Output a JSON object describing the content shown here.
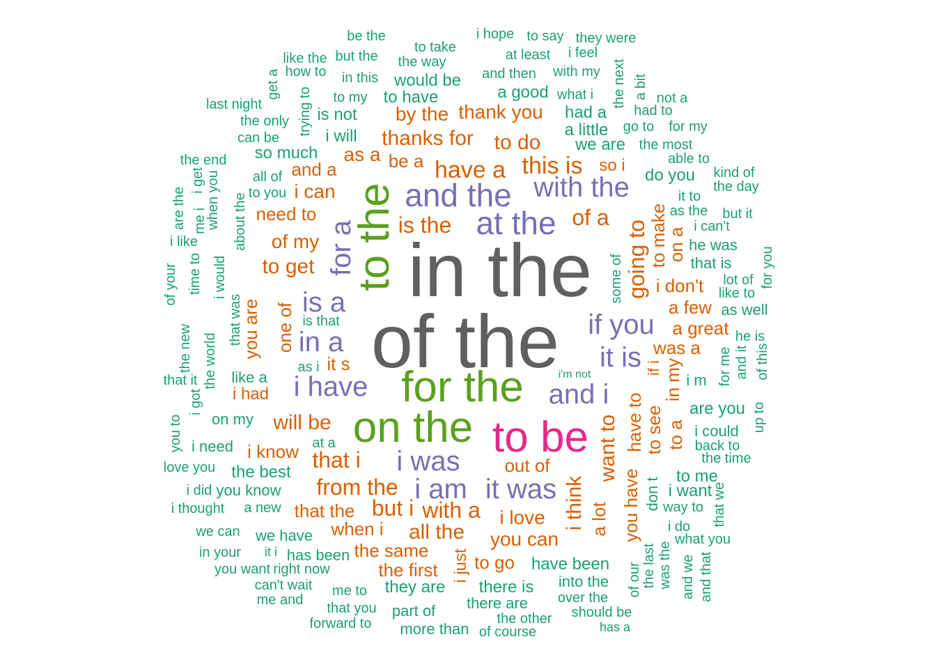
{
  "colors": {
    "tier1": "#5f6060",
    "tier2": "#5aa01e",
    "tier3": "#e7298a",
    "tier4": "#7570b3",
    "tier5": "#d95f02",
    "tier6": "#1b9e77"
  },
  "words": [
    {
      "text": "in the",
      "tier": "tier1"
    },
    {
      "text": "of the",
      "tier": "tier1"
    },
    {
      "text": "for the",
      "tier": "tier2"
    },
    {
      "text": "on the",
      "tier": "tier2"
    },
    {
      "text": "to the",
      "tier": "tier2"
    },
    {
      "text": "to be",
      "tier": "tier3"
    },
    {
      "text": "and the",
      "tier": "tier4"
    },
    {
      "text": "at the",
      "tier": "tier4"
    },
    {
      "text": "with the",
      "tier": "tier4"
    },
    {
      "text": "i have",
      "tier": "tier4"
    },
    {
      "text": "i was",
      "tier": "tier4"
    },
    {
      "text": "i am",
      "tier": "tier4"
    },
    {
      "text": "it was",
      "tier": "tier4"
    },
    {
      "text": "is a",
      "tier": "tier4"
    },
    {
      "text": "in a",
      "tier": "tier4"
    },
    {
      "text": "if you",
      "tier": "tier4"
    },
    {
      "text": "it is",
      "tier": "tier4"
    },
    {
      "text": "and i",
      "tier": "tier4"
    },
    {
      "text": "for a",
      "tier": "tier4"
    },
    {
      "text": "have a",
      "tier": "tier5"
    },
    {
      "text": "this is",
      "tier": "tier5"
    },
    {
      "text": "is the",
      "tier": "tier5"
    },
    {
      "text": "of a",
      "tier": "tier5"
    },
    {
      "text": "going to",
      "tier": "tier5"
    },
    {
      "text": "to get",
      "tier": "tier5"
    },
    {
      "text": "of my",
      "tier": "tier5"
    },
    {
      "text": "need to",
      "tier": "tier5"
    },
    {
      "text": "i can",
      "tier": "tier5"
    },
    {
      "text": "and a",
      "tier": "tier5"
    },
    {
      "text": "as a",
      "tier": "tier5"
    },
    {
      "text": "be a",
      "tier": "tier5"
    },
    {
      "text": "thanks for",
      "tier": "tier5"
    },
    {
      "text": "to do",
      "tier": "tier5"
    },
    {
      "text": "so i",
      "tier": "tier5"
    },
    {
      "text": "by the",
      "tier": "tier5"
    },
    {
      "text": "thank you",
      "tier": "tier5"
    },
    {
      "text": "to make",
      "tier": "tier5"
    },
    {
      "text": "on a",
      "tier": "tier5"
    },
    {
      "text": "i don't",
      "tier": "tier5"
    },
    {
      "text": "a few",
      "tier": "tier5"
    },
    {
      "text": "a great",
      "tier": "tier5"
    },
    {
      "text": "was a",
      "tier": "tier5"
    },
    {
      "text": "in my",
      "tier": "tier5"
    },
    {
      "text": "if i",
      "tier": "tier5"
    },
    {
      "text": "you are",
      "tier": "tier5"
    },
    {
      "text": "one of",
      "tier": "tier5"
    },
    {
      "text": "it s",
      "tier": "tier5"
    },
    {
      "text": "i had",
      "tier": "tier5"
    },
    {
      "text": "will be",
      "tier": "tier5"
    },
    {
      "text": "i know",
      "tier": "tier5"
    },
    {
      "text": "that i",
      "tier": "tier5"
    },
    {
      "text": "from the",
      "tier": "tier5"
    },
    {
      "text": "but i",
      "tier": "tier5"
    },
    {
      "text": "with a",
      "tier": "tier5"
    },
    {
      "text": "that the",
      "tier": "tier5"
    },
    {
      "text": "when i",
      "tier": "tier5"
    },
    {
      "text": "all the",
      "tier": "tier5"
    },
    {
      "text": "the same",
      "tier": "tier5"
    },
    {
      "text": "the first",
      "tier": "tier5"
    },
    {
      "text": "i just",
      "tier": "tier5"
    },
    {
      "text": "to go",
      "tier": "tier5"
    },
    {
      "text": "you can",
      "tier": "tier5"
    },
    {
      "text": "i love",
      "tier": "tier5"
    },
    {
      "text": "out of",
      "tier": "tier5"
    },
    {
      "text": "i think",
      "tier": "tier5"
    },
    {
      "text": "a lot",
      "tier": "tier5"
    },
    {
      "text": "want to",
      "tier": "tier5"
    },
    {
      "text": "you have",
      "tier": "tier5"
    },
    {
      "text": "have to",
      "tier": "tier5"
    },
    {
      "text": "to see",
      "tier": "tier5"
    },
    {
      "text": "to a",
      "tier": "tier5"
    },
    {
      "text": "be the",
      "tier": "tier6"
    },
    {
      "text": "i hope",
      "tier": "tier6"
    },
    {
      "text": "to say",
      "tier": "tier6"
    },
    {
      "text": "they were",
      "tier": "tier6"
    },
    {
      "text": "to take",
      "tier": "tier6"
    },
    {
      "text": "like the",
      "tier": "tier6"
    },
    {
      "text": "but the",
      "tier": "tier6"
    },
    {
      "text": "the way",
      "tier": "tier6"
    },
    {
      "text": "at least",
      "tier": "tier6"
    },
    {
      "text": "i feel",
      "tier": "tier6"
    },
    {
      "text": "how to",
      "tier": "tier6"
    },
    {
      "text": "in this",
      "tier": "tier6"
    },
    {
      "text": "and then",
      "tier": "tier6"
    },
    {
      "text": "with my",
      "tier": "tier6"
    },
    {
      "text": "would be",
      "tier": "tier6"
    },
    {
      "text": "get a",
      "tier": "tier6"
    },
    {
      "text": "to my",
      "tier": "tier6"
    },
    {
      "text": "to have",
      "tier": "tier6"
    },
    {
      "text": "a good",
      "tier": "tier6"
    },
    {
      "text": "what i",
      "tier": "tier6"
    },
    {
      "text": "the next",
      "tier": "tier6"
    },
    {
      "text": "a bit",
      "tier": "tier6"
    },
    {
      "text": "not a",
      "tier": "tier6"
    },
    {
      "text": "last night",
      "tier": "tier6"
    },
    {
      "text": "trying to",
      "tier": "tier6"
    },
    {
      "text": "is not",
      "tier": "tier6"
    },
    {
      "text": "had a",
      "tier": "tier6"
    },
    {
      "text": "had to",
      "tier": "tier6"
    },
    {
      "text": "the only",
      "tier": "tier6"
    },
    {
      "text": "go to",
      "tier": "tier6"
    },
    {
      "text": "for my",
      "tier": "tier6"
    },
    {
      "text": "a little",
      "tier": "tier6"
    },
    {
      "text": "can be",
      "tier": "tier6"
    },
    {
      "text": "i will",
      "tier": "tier6"
    },
    {
      "text": "we are",
      "tier": "tier6"
    },
    {
      "text": "the most",
      "tier": "tier6"
    },
    {
      "text": "so much",
      "tier": "tier6"
    },
    {
      "text": "able to",
      "tier": "tier6"
    },
    {
      "text": "the end",
      "tier": "tier6"
    },
    {
      "text": "all of",
      "tier": "tier6"
    },
    {
      "text": "do you",
      "tier": "tier6"
    },
    {
      "text": "kind of",
      "tier": "tier6"
    },
    {
      "text": "i get",
      "tier": "tier6"
    },
    {
      "text": "are the",
      "tier": "tier6"
    },
    {
      "text": "when you",
      "tier": "tier6"
    },
    {
      "text": "to you",
      "tier": "tier6"
    },
    {
      "text": "the day",
      "tier": "tier6"
    },
    {
      "text": "it to",
      "tier": "tier6"
    },
    {
      "text": "me i",
      "tier": "tier6"
    },
    {
      "text": "about the",
      "tier": "tier6"
    },
    {
      "text": "as the",
      "tier": "tier6"
    },
    {
      "text": "but it",
      "tier": "tier6"
    },
    {
      "text": "i can't",
      "tier": "tier6"
    },
    {
      "text": "i like",
      "tier": "tier6"
    },
    {
      "text": "he was",
      "tier": "tier6"
    },
    {
      "text": "for you",
      "tier": "tier6"
    },
    {
      "text": "time to",
      "tier": "tier6"
    },
    {
      "text": "i would",
      "tier": "tier6"
    },
    {
      "text": "some of",
      "tier": "tier6"
    },
    {
      "text": "that is",
      "tier": "tier6"
    },
    {
      "text": "of your",
      "tier": "tier6"
    },
    {
      "text": "lot of",
      "tier": "tier6"
    },
    {
      "text": "like to",
      "tier": "tier6"
    },
    {
      "text": "that was",
      "tier": "tier6"
    },
    {
      "text": "as well",
      "tier": "tier6"
    },
    {
      "text": "is that",
      "tier": "tier6"
    },
    {
      "text": "the new",
      "tier": "tier6"
    },
    {
      "text": "he is",
      "tier": "tier6"
    },
    {
      "text": "the world",
      "tier": "tier6"
    },
    {
      "text": "for me",
      "tier": "tier6"
    },
    {
      "text": "and it",
      "tier": "tier6"
    },
    {
      "text": "of this",
      "tier": "tier6"
    },
    {
      "text": "as i",
      "tier": "tier6"
    },
    {
      "text": "i'm not",
      "tier": "tier6"
    },
    {
      "text": "that it",
      "tier": "tier6"
    },
    {
      "text": "like a",
      "tier": "tier6"
    },
    {
      "text": "i m",
      "tier": "tier6"
    },
    {
      "text": "i got",
      "tier": "tier6"
    },
    {
      "text": "are you",
      "tier": "tier6"
    },
    {
      "text": "on my",
      "tier": "tier6"
    },
    {
      "text": "up to",
      "tier": "tier6"
    },
    {
      "text": "you to",
      "tier": "tier6"
    },
    {
      "text": "i could",
      "tier": "tier6"
    },
    {
      "text": "at a",
      "tier": "tier6"
    },
    {
      "text": "i need",
      "tier": "tier6"
    },
    {
      "text": "back to",
      "tier": "tier6"
    },
    {
      "text": "the time",
      "tier": "tier6"
    },
    {
      "text": "love you",
      "tier": "tier6"
    },
    {
      "text": "the best",
      "tier": "tier6"
    },
    {
      "text": "to me",
      "tier": "tier6"
    },
    {
      "text": "i did",
      "tier": "tier6"
    },
    {
      "text": "you know",
      "tier": "tier6"
    },
    {
      "text": "that we",
      "tier": "tier6"
    },
    {
      "text": "i want",
      "tier": "tier6"
    },
    {
      "text": "don t",
      "tier": "tier6"
    },
    {
      "text": "i thought",
      "tier": "tier6"
    },
    {
      "text": "a new",
      "tier": "tier6"
    },
    {
      "text": "way to",
      "tier": "tier6"
    },
    {
      "text": "i do",
      "tier": "tier6"
    },
    {
      "text": "we can",
      "tier": "tier6"
    },
    {
      "text": "we have",
      "tier": "tier6"
    },
    {
      "text": "what you",
      "tier": "tier6"
    },
    {
      "text": "the last",
      "tier": "tier6"
    },
    {
      "text": "was the",
      "tier": "tier6"
    },
    {
      "text": "in your",
      "tier": "tier6"
    },
    {
      "text": "it i",
      "tier": "tier6"
    },
    {
      "text": "has been",
      "tier": "tier6"
    },
    {
      "text": "have been",
      "tier": "tier6"
    },
    {
      "text": "and we",
      "tier": "tier6"
    },
    {
      "text": "and that",
      "tier": "tier6"
    },
    {
      "text": "you want",
      "tier": "tier6"
    },
    {
      "text": "right now",
      "tier": "tier6"
    },
    {
      "text": "into the",
      "tier": "tier6"
    },
    {
      "text": "of our",
      "tier": "tier6"
    },
    {
      "text": "can't wait",
      "tier": "tier6"
    },
    {
      "text": "they are",
      "tier": "tier6"
    },
    {
      "text": "there is",
      "tier": "tier6"
    },
    {
      "text": "me to",
      "tier": "tier6"
    },
    {
      "text": "me and",
      "tier": "tier6"
    },
    {
      "text": "over the",
      "tier": "tier6"
    },
    {
      "text": "there are",
      "tier": "tier6"
    },
    {
      "text": "that you",
      "tier": "tier6"
    },
    {
      "text": "part of",
      "tier": "tier6"
    },
    {
      "text": "should be",
      "tier": "tier6"
    },
    {
      "text": "the other",
      "tier": "tier6"
    },
    {
      "text": "forward to",
      "tier": "tier6"
    },
    {
      "text": "more than",
      "tier": "tier6"
    },
    {
      "text": "of course",
      "tier": "tier6"
    },
    {
      "text": "has a",
      "tier": "tier6"
    }
  ]
}
